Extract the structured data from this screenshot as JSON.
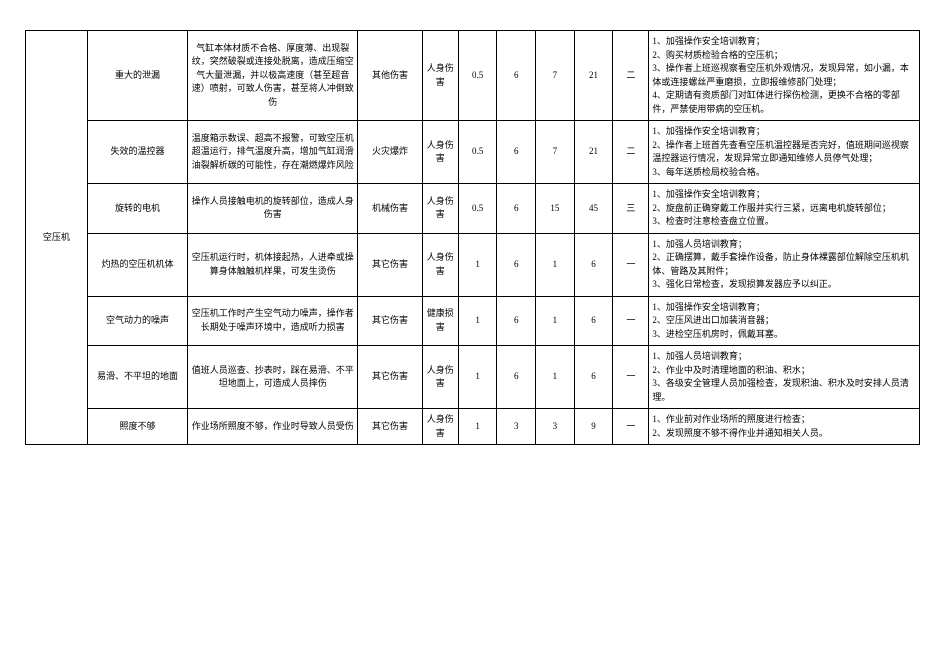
{
  "category": "空压机",
  "rows": [
    {
      "hazard": "重大的泄漏",
      "desc": "气缸本体材质不合格、厚度薄、出现裂纹，突然破裂或连接处脱离，造成压缩空气大量泄漏，并以极高速度（甚至超音速）喷射，可致人伤害，甚至将人冲倒致伤",
      "mode": "其他伤害",
      "harm": "人身伤害",
      "L": "0.5",
      "E": "6",
      "C": "7",
      "D": "21",
      "level": "二",
      "measures": "1、加强操作安全培训教育；\n2、购买材质检验合格的空压机；\n3、操作者上班巡视察看空压机外观情况，发现异常，如小漏，本体或连接螺丝严重磨损，立即报维修部门处理；\n4、定期请有资质部门对缸体进行探伤检测，更换不合格的零部件，严禁使用带病的空压机。"
    },
    {
      "hazard": "失效的温控器",
      "desc": "温度箱示数误、超高不报警，可致空压机超温运行，排气温度升高，增加气缸润滑油裂解析碳的可能性，存在潮燃爆炸风险",
      "mode": "火灾爆炸",
      "harm": "人身伤害",
      "L": "0.5",
      "E": "6",
      "C": "7",
      "D": "21",
      "level": "二",
      "measures": "1、加强操作安全培训教育；\n2、操作者上班首先查看空压机温控器是否完好，值班期间巡视察温控器运行情况，发现异常立即通知维修人员停气处理；\n3、每年送质检局校验合格。"
    },
    {
      "hazard": "旋转的电机",
      "desc": "操作人员接触电机的旋转部位，造成人身伤害",
      "mode": "机械伤害",
      "harm": "人身伤害",
      "L": "0.5",
      "E": "6",
      "C": "15",
      "D": "45",
      "level": "三",
      "measures": "1、加强操作安全培训教育；\n2、旋盘前正确穿戴工作服并实行三紧，远离电机旋转部位；\n3、检查时注意检查盘立位置。"
    },
    {
      "hazard": "灼热的空压机机体",
      "desc": "空压机运行时，机体接起热，人进牵或操算身体触触机样果，可发生烫伤",
      "mode": "其它伤害",
      "harm": "人身伤害",
      "L": "1",
      "E": "6",
      "C": "1",
      "D": "6",
      "level": "一",
      "measures": "1、加强人员培训教育；\n2、正确摆算，戴手套操作设备，防止身体裸露部位解除空压机机体、管路及其附件；\n3、强化日常检查，发现损算发器应予以纠正。"
    },
    {
      "hazard": "空气动力的噪声",
      "desc": "空压机工作时产生空气动力噪声，操作者长期处于噪声环境中，造成听力损害",
      "mode": "其它伤害",
      "harm": "健康损害",
      "L": "1",
      "E": "6",
      "C": "1",
      "D": "6",
      "level": "一",
      "measures": "1、加强操作安全培训教育；\n2、空压风进出口加装消音器；\n3、进检空压机房时，佩戴耳塞。"
    },
    {
      "hazard": "易滑、不平坦的地面",
      "desc": "值班人员巡查、抄表时，踩在易滑、不平坦地面上，可造成人员摔伤",
      "mode": "其它伤害",
      "harm": "人身伤害",
      "L": "1",
      "E": "6",
      "C": "1",
      "D": "6",
      "level": "一",
      "measures": "1、加强人员培训教育；\n2、作业中及时清理地面的积油、积水；\n3、各级安全管理人员加强检查，发现积油、积水及时安排人员清理。"
    },
    {
      "hazard": "照度不够",
      "desc": "作业场所照度不够，作业时导致人员受伤",
      "mode": "其它伤害",
      "harm": "人身伤害",
      "L": "1",
      "E": "3",
      "C": "3",
      "D": "9",
      "level": "一",
      "measures": "1、作业前对作业场所的照度进行检查；\n2、发现照度不够不得作业并通知相关人员。"
    }
  ]
}
